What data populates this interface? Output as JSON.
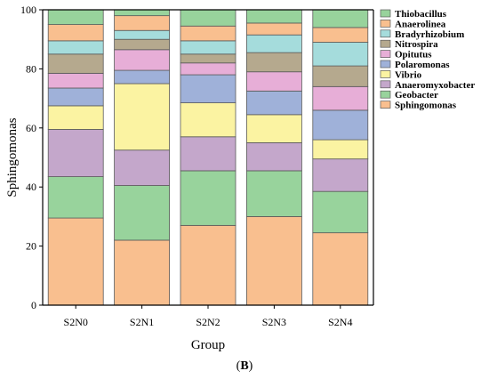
{
  "chart_data": {
    "type": "bar",
    "stacked": true,
    "categories": [
      "S2N0",
      "S2N1",
      "S2N2",
      "S2N3",
      "S2N4"
    ],
    "xlabel": "Group",
    "ylabel": "Sphingomonas",
    "ylim": [
      0,
      100
    ],
    "yticks": [
      0,
      20,
      40,
      60,
      80,
      100
    ],
    "legend_position": "right",
    "caption_prefix": "(",
    "caption_letter": "B",
    "caption_suffix": ")",
    "series": [
      {
        "name": "Sphingomonas",
        "color": "#f9bf8f",
        "values": [
          29.5,
          22.0,
          27.0,
          30.0,
          24.5
        ]
      },
      {
        "name": "Geobacter",
        "color": "#98d39c",
        "values": [
          14.0,
          18.5,
          18.5,
          15.5,
          14.0
        ]
      },
      {
        "name": "Anaeromyxobacter",
        "color": "#c4a7cb",
        "values": [
          16.0,
          12.0,
          11.5,
          9.5,
          11.0
        ]
      },
      {
        "name": "Vibrio",
        "color": "#fbf3a2",
        "values": [
          8.0,
          22.5,
          11.5,
          9.5,
          6.5
        ]
      },
      {
        "name": "Polaromonas",
        "color": "#9fb1d9",
        "values": [
          6.0,
          4.5,
          9.5,
          8.0,
          10.0
        ]
      },
      {
        "name": "Opitutus",
        "color": "#e7aed7",
        "values": [
          5.0,
          7.0,
          4.0,
          6.5,
          8.0
        ]
      },
      {
        "name": "Nitrospira",
        "color": "#b5a98e",
        "values": [
          6.5,
          3.5,
          3.0,
          6.5,
          7.0
        ]
      },
      {
        "name": "Bradyrhizobium",
        "color": "#a5dcdc",
        "values": [
          4.5,
          3.0,
          4.5,
          6.0,
          8.0
        ]
      },
      {
        "name": "Anaerolinea",
        "color": "#f9bf8f",
        "values": [
          5.5,
          5.0,
          5.0,
          4.0,
          5.0
        ]
      },
      {
        "name": "Thiobacillus",
        "color": "#98d39c",
        "values": [
          5.0,
          2.0,
          5.5,
          4.5,
          6.0
        ]
      }
    ]
  }
}
